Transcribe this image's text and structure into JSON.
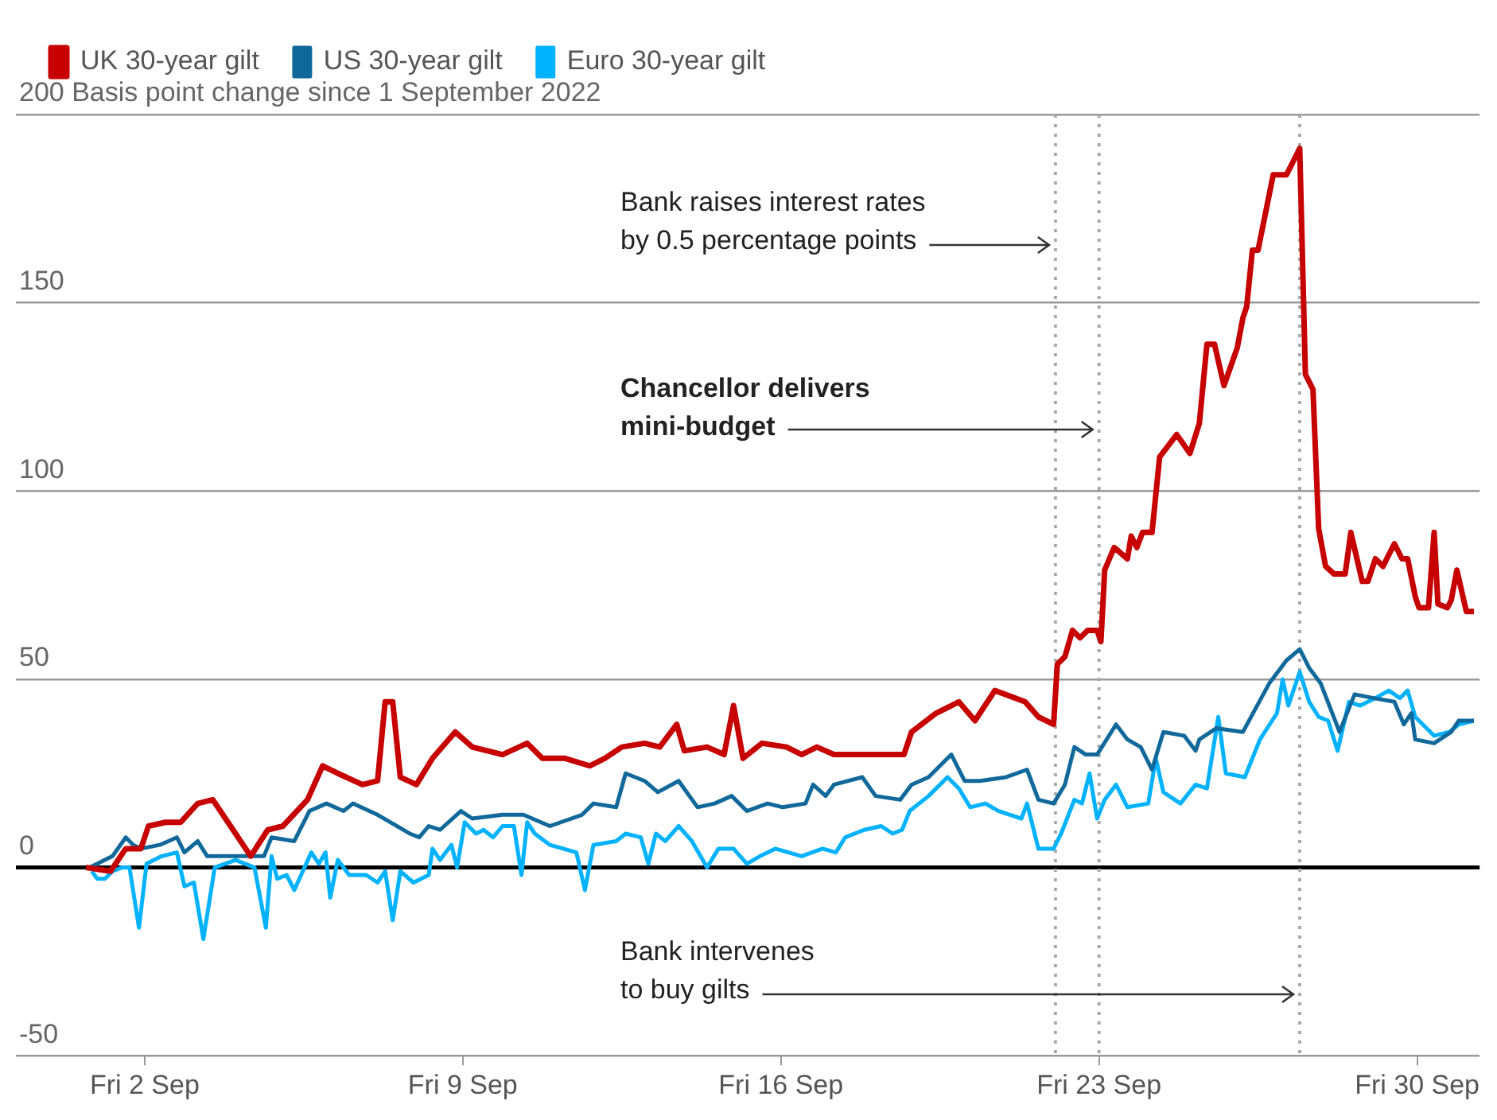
{
  "chart_data": {
    "type": "line",
    "ylabel": "Basis point change since 1 September 2022",
    "xlim": [
      "2022-08-30T04:00",
      "2022-10-01T09:00"
    ],
    "xticks": [
      {
        "value": "2022-09-02",
        "label": "Fri 2 Sep"
      },
      {
        "value": "2022-09-09",
        "label": "Fri 9 Sep"
      },
      {
        "value": "2022-09-16",
        "label": "Fri 16 Sep"
      },
      {
        "value": "2022-09-23",
        "label": "Fri 23 Sep"
      },
      {
        "value": "2022-09-30",
        "label": "Fri 30 Sep"
      }
    ],
    "ylim": [
      -50,
      200
    ],
    "yticks": [
      -50,
      0,
      50,
      100,
      150,
      200
    ],
    "grid": "y",
    "legend": "top left",
    "marker": "none",
    "line_style": "solid",
    "series": [
      {
        "name": "UK 30-year gilt",
        "color": "#c70000",
        "x": [
          "2022-08-31T17:00",
          "2022-09-01T06:00",
          "2022-09-01T14:00",
          "2022-09-01T22:00",
          "2022-09-02T02:00",
          "2022-09-02T11:00",
          "2022-09-02T19:00",
          "2022-09-03T04:00",
          "2022-09-03T12:00",
          "2022-09-03T20:00",
          "2022-09-04T08:00",
          "2022-09-04T17:00",
          "2022-09-05T01:00",
          "2022-09-05T14:00",
          "2022-09-05T22:00",
          "2022-09-06T06:00",
          "2022-09-06T19:00",
          "2022-09-07T03:00",
          "2022-09-07T07:00",
          "2022-09-07T11:00",
          "2022-09-07T15:00",
          "2022-09-07T23:30",
          "2022-09-08T08:00",
          "2022-09-08T20:00",
          "2022-09-09T05:00",
          "2022-09-09T21:00",
          "2022-09-10T10:00",
          "2022-09-10T18:00",
          "2022-09-11T06:00",
          "2022-09-11T19:00",
          "2022-09-12T03:00",
          "2022-09-12T12:00",
          "2022-09-13T00:00",
          "2022-09-13T08:00",
          "2022-09-13T17:00",
          "2022-09-13T21:00",
          "2022-09-14T09:00",
          "2022-09-14T18:00",
          "2022-09-14T23:00",
          "2022-09-15T04:00",
          "2022-09-15T14:00",
          "2022-09-16T03:00",
          "2022-09-16T11:00",
          "2022-09-16T19:00",
          "2022-09-17T04:00",
          "2022-09-17T12:00",
          "2022-09-18T17:00",
          "2022-09-18T21:00",
          "2022-09-19T10:00",
          "2022-09-19T22:00",
          "2022-09-20T06:30",
          "2022-09-20T17:00",
          "2022-09-21T09:00",
          "2022-09-21T16:00",
          "2022-09-22T00:00",
          "2022-09-22T02:00",
          "2022-09-22T06:00",
          "2022-09-22T10:00",
          "2022-09-22T14:00",
          "2022-09-22T18:00",
          "2022-09-22T23:00",
          "2022-09-23T01:00",
          "2022-09-23T03:00",
          "2022-09-23T08:00",
          "2022-09-23T15:00",
          "2022-09-23T17:00",
          "2022-09-23T20:00",
          "2022-09-23T23:00",
          "2022-09-24T04:00",
          "2022-09-24T08:00",
          "2022-09-24T17:00",
          "2022-09-25T00:00",
          "2022-09-25T05:00",
          "2022-09-25T09:00",
          "2022-09-25T13:00",
          "2022-09-25T18:00",
          "2022-09-26T01:00",
          "2022-09-26T04:00",
          "2022-09-26T06:00",
          "2022-09-26T09:00",
          "2022-09-26T12:00",
          "2022-09-26T20:00",
          "2022-09-27T03:00",
          "2022-09-27T10:00",
          "2022-09-27T13:00",
          "2022-09-27T17:00",
          "2022-09-27T20:00",
          "2022-09-27T23:40",
          "2022-09-28T04:00",
          "2022-09-28T10:00",
          "2022-09-28T13:00",
          "2022-09-28T19:00",
          "2022-09-28T22:00",
          "2022-09-29T02:00",
          "2022-09-29T06:00",
          "2022-09-29T12:00",
          "2022-09-29T16:00",
          "2022-09-29T19:00",
          "2022-09-29T23:00",
          "2022-09-30T01:00",
          "2022-09-30T06:00",
          "2022-09-30T09:00",
          "2022-09-30T11:00",
          "2022-09-30T16:00",
          "2022-09-30T18:00",
          "2022-09-30T21:00",
          "2022-10-01T02:00",
          "2022-10-01T06:00"
        ],
        "values": [
          0,
          -1,
          5,
          5,
          11,
          12,
          12,
          17,
          18,
          12,
          3,
          10,
          11,
          18,
          27,
          25,
          22,
          23,
          44,
          44,
          24,
          22,
          29,
          36,
          32,
          30,
          33,
          29,
          29,
          27,
          29,
          32,
          33,
          32,
          38,
          31,
          32,
          30,
          43,
          29,
          33,
          32,
          30,
          32,
          30,
          30,
          30,
          36,
          41,
          44,
          39,
          47,
          44,
          40,
          38,
          54,
          56,
          63,
          61,
          63,
          63,
          60,
          79,
          85,
          82,
          88,
          85,
          89,
          89,
          109,
          115,
          110,
          118,
          139,
          139,
          128,
          138,
          146,
          149,
          164,
          164,
          184,
          184,
          191,
          131,
          127,
          90,
          80,
          78,
          78,
          89,
          76,
          76,
          82,
          80,
          86,
          82,
          82,
          72,
          69,
          69,
          89,
          70,
          69,
          71,
          79,
          68,
          68
        ]
      },
      {
        "name": "US 30-year gilt",
        "color": "#11699b",
        "x": [
          "2022-08-31T19:00",
          "2022-09-01T07:00",
          "2022-09-01T14:00",
          "2022-09-01T18:00",
          "2022-09-01T22:00",
          "2022-09-02T08:00",
          "2022-09-02T17:00",
          "2022-09-02T21:00",
          "2022-09-03T04:00",
          "2022-09-03T09:00",
          "2022-09-04T07:00",
          "2022-09-04T15:00",
          "2022-09-04T19:00",
          "2022-09-05T07:00",
          "2022-09-05T15:00",
          "2022-09-06T00:00",
          "2022-09-06T09:00",
          "2022-09-06T14:00",
          "2022-09-07T03:00",
          "2022-09-07T20:00",
          "2022-09-08T01:00",
          "2022-09-08T06:00",
          "2022-09-08T12:00",
          "2022-09-08T23:00",
          "2022-09-09T05:00",
          "2022-09-09T21:00",
          "2022-09-10T08:00",
          "2022-09-10T22:00",
          "2022-09-11T15:00",
          "2022-09-11T21:00",
          "2022-09-12T09:00",
          "2022-09-12T14:00",
          "2022-09-13T00:00",
          "2022-09-13T07:00",
          "2022-09-13T18:00",
          "2022-09-14T04:00",
          "2022-09-14T13:00",
          "2022-09-14T22:00",
          "2022-09-15T06:00",
          "2022-09-15T17:00",
          "2022-09-16T01:00",
          "2022-09-16T13:00",
          "2022-09-16T17:00",
          "2022-09-16T23:40",
          "2022-09-17T04:00",
          "2022-09-17T19:00",
          "2022-09-18T02:00",
          "2022-09-18T15:00",
          "2022-09-18T21:00",
          "2022-09-19T06:00",
          "2022-09-19T18:00",
          "2022-09-20T01:00",
          "2022-09-20T09:00",
          "2022-09-20T23:00",
          "2022-09-21T10:00",
          "2022-09-21T16:00",
          "2022-09-22T00:00",
          "2022-09-22T06:00",
          "2022-09-22T11:00",
          "2022-09-22T17:00",
          "2022-09-22T23:00",
          "2022-09-23T09:00",
          "2022-09-23T15:00",
          "2022-09-23T22:00",
          "2022-09-24T04:00",
          "2022-09-24T10:00",
          "2022-09-24T21:00",
          "2022-09-25T03:00",
          "2022-09-25T05:00",
          "2022-09-25T14:00",
          "2022-09-26T04:00",
          "2022-09-26T18:00",
          "2022-09-27T03:00",
          "2022-09-27T10:00",
          "2022-09-27T15:00",
          "2022-09-27T21:00",
          "2022-09-28T07:00",
          "2022-09-28T15:00",
          "2022-09-29T01:00",
          "2022-09-29T12:00",
          "2022-09-29T17:00",
          "2022-09-29T21:00",
          "2022-09-29T23:00",
          "2022-09-30T09:00",
          "2022-09-30T18:00",
          "2022-09-30T22:00",
          "2022-10-01T06:00"
        ],
        "values": [
          0,
          3,
          8,
          6,
          5,
          6,
          8,
          4,
          7,
          3,
          3,
          3,
          8,
          7,
          15,
          17,
          15,
          17,
          14,
          9,
          8,
          11,
          10,
          15,
          13,
          14,
          14,
          11,
          14,
          17,
          16,
          25,
          23,
          20,
          23,
          16,
          17,
          19,
          15,
          17,
          16,
          17,
          22,
          19,
          22,
          24,
          19,
          18,
          22,
          24,
          30,
          23,
          23,
          24,
          26,
          18,
          17,
          22,
          32,
          30,
          30,
          38,
          34,
          32,
          26,
          36,
          35,
          31,
          34,
          37,
          36,
          49,
          55,
          58,
          53,
          49,
          36,
          46,
          45,
          44,
          38,
          41,
          34,
          33,
          36,
          39,
          39
        ]
      },
      {
        "name": "Euro 30-year gilt",
        "color": "#00b2ff",
        "x": [
          "2022-08-31T20:00",
          "2022-08-31T23:00",
          "2022-09-01T03:00",
          "2022-09-01T07:00",
          "2022-09-01T12:00",
          "2022-09-01T16:00",
          "2022-09-01T21:00",
          "2022-09-02T01:00",
          "2022-09-02T09:00",
          "2022-09-02T17:00",
          "2022-09-02T21:00",
          "2022-09-03T02:00",
          "2022-09-03T07:00",
          "2022-09-03T13:00",
          "2022-09-04T00:00",
          "2022-09-04T10:00",
          "2022-09-04T16:00",
          "2022-09-04T19:00",
          "2022-09-04T22:00",
          "2022-09-05T03:00",
          "2022-09-05T07:00",
          "2022-09-05T16:00",
          "2022-09-05T20:00",
          "2022-09-05T23:30",
          "2022-09-06T02:00",
          "2022-09-06T06:00",
          "2022-09-06T12:00",
          "2022-09-06T21:00",
          "2022-09-07T03:00",
          "2022-09-07T07:00",
          "2022-09-07T11:00",
          "2022-09-07T15:00",
          "2022-09-07T22:00",
          "2022-09-08T06:00",
          "2022-09-08T08:00",
          "2022-09-08T12:00",
          "2022-09-08T18:00",
          "2022-09-08T21:00",
          "2022-09-09T01:00",
          "2022-09-09T07:00",
          "2022-09-09T11:00",
          "2022-09-09T16:00",
          "2022-09-09T21:00",
          "2022-09-10T03:00",
          "2022-09-10T07:00",
          "2022-09-10T10:00",
          "2022-09-10T14:00",
          "2022-09-10T22:00",
          "2022-09-11T12:00",
          "2022-09-11T16:30",
          "2022-09-11T21:00",
          "2022-09-12T09:00",
          "2022-09-12T14:00",
          "2022-09-12T22:00",
          "2022-09-13T02:00",
          "2022-09-13T06:00",
          "2022-09-13T11:00",
          "2022-09-13T18:00",
          "2022-09-14T01:00",
          "2022-09-14T09:00",
          "2022-09-14T15:00",
          "2022-09-14T23:00",
          "2022-09-15T06:00",
          "2022-09-15T13:00",
          "2022-09-15T21:00",
          "2022-09-16T11:00",
          "2022-09-16T22:00",
          "2022-09-17T05:00",
          "2022-09-17T10:00",
          "2022-09-17T20:00",
          "2022-09-18T05:00",
          "2022-09-18T11:00",
          "2022-09-18T16:00",
          "2022-09-18T20:00",
          "2022-09-19T06:00",
          "2022-09-19T16:00",
          "2022-09-19T22:00",
          "2022-09-20T04:00",
          "2022-09-20T12:00",
          "2022-09-20T19:00",
          "2022-09-21T07:00",
          "2022-09-21T10:00",
          "2022-09-21T16:00",
          "2022-09-22T00:00",
          "2022-09-22T04:00",
          "2022-09-22T11:00",
          "2022-09-22T15:00",
          "2022-09-22T19:00",
          "2022-09-22T23:00",
          "2022-09-23T03:00",
          "2022-09-23T09:00",
          "2022-09-23T15:00",
          "2022-09-24T02:00",
          "2022-09-24T06:00",
          "2022-09-24T10:00",
          "2022-09-24T19:00",
          "2022-09-25T03:00",
          "2022-09-25T09:00",
          "2022-09-25T15:00",
          "2022-09-25T19:00",
          "2022-09-26T05:00",
          "2022-09-26T13:00",
          "2022-09-26T22:00",
          "2022-09-27T01:00",
          "2022-09-27T04:00",
          "2022-09-27T10:00",
          "2022-09-27T15:00",
          "2022-09-27T20:00",
          "2022-09-28T01:00",
          "2022-09-28T06:00",
          "2022-09-28T12:00",
          "2022-09-28T18:00",
          "2022-09-29T02:00",
          "2022-09-29T09:00",
          "2022-09-29T15:00",
          "2022-09-29T19:00",
          "2022-09-29T23:00",
          "2022-09-30T09:00",
          "2022-09-30T17:00",
          "2022-09-30T22:00",
          "2022-10-01T06:00"
        ],
        "values": [
          -1,
          -3,
          -3,
          -1,
          0,
          0,
          -16,
          1,
          3,
          4,
          -5,
          -4,
          -19,
          0,
          2,
          0,
          -16,
          3,
          -3,
          -2,
          -6,
          4,
          1,
          4,
          -8,
          2,
          -2,
          -2,
          -4,
          -1,
          -14,
          -1,
          -4,
          -2,
          5,
          2,
          6,
          0,
          12,
          9,
          10,
          8,
          11,
          11,
          -2,
          12,
          9,
          6,
          4,
          -6,
          6,
          7,
          9,
          8,
          1,
          9,
          7,
          11,
          7,
          0,
          5,
          5,
          1,
          3,
          5,
          3,
          5,
          4,
          8,
          10,
          11,
          9,
          10,
          15,
          19,
          24,
          21,
          16,
          17,
          15,
          13,
          17,
          5,
          5,
          9,
          18,
          17,
          25,
          13,
          18,
          22,
          16,
          17,
          29,
          20,
          17,
          22,
          21,
          40,
          25,
          24,
          34,
          41,
          50,
          43,
          52,
          44,
          40,
          39,
          31,
          44,
          43,
          45,
          47,
          45,
          47,
          40,
          35,
          36,
          38,
          39
        ]
      }
    ],
    "ref_lines": [
      {
        "axis": "x",
        "value": "2022-09-22T01:00",
        "label": "Bank raises interest rates\nby 0.5 percentage points",
        "color": "#aaaaaa",
        "line_style": "dotted"
      },
      {
        "axis": "x",
        "value": "2022-09-23T00:00",
        "label": "Chancellor delivers\nmini-budget",
        "color": "#aaaaaa",
        "line_style": "dotted"
      },
      {
        "axis": "x",
        "value": "2022-09-27T10:00",
        "label": "Bank intervenes\nto buy gilts",
        "color": "#aaaaaa",
        "line_style": "dotted"
      }
    ]
  }
}
